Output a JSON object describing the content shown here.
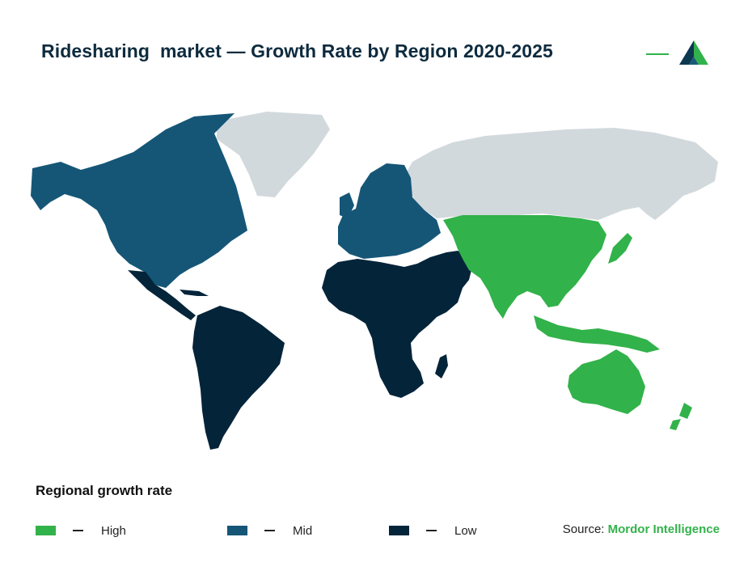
{
  "header": {
    "title": "Ridesharing  market — Growth Rate by Region 2020-2025",
    "logo_icon": "mordor-intelligence-logo-icon"
  },
  "map": {
    "regions": [
      {
        "name": "North America",
        "level": "Mid"
      },
      {
        "name": "Europe",
        "level": "Mid"
      },
      {
        "name": "South America",
        "level": "Low"
      },
      {
        "name": "Africa",
        "level": "Low"
      },
      {
        "name": "Middle East",
        "level": "Low"
      },
      {
        "name": "Asia-Pacific",
        "level": "High"
      }
    ]
  },
  "legend": {
    "title": "Regional growth rate",
    "items": [
      {
        "label": "High",
        "color": "#32b24a"
      },
      {
        "label": "Mid",
        "color": "#155677"
      },
      {
        "label": "Low",
        "color": "#04243a"
      }
    ]
  },
  "source": {
    "prefix": "Source: ",
    "name": "Mordor Intelligence"
  },
  "colors": {
    "no_data": "#d2d9dd",
    "accent": "#32b24a",
    "title": "#0d2b3e"
  }
}
